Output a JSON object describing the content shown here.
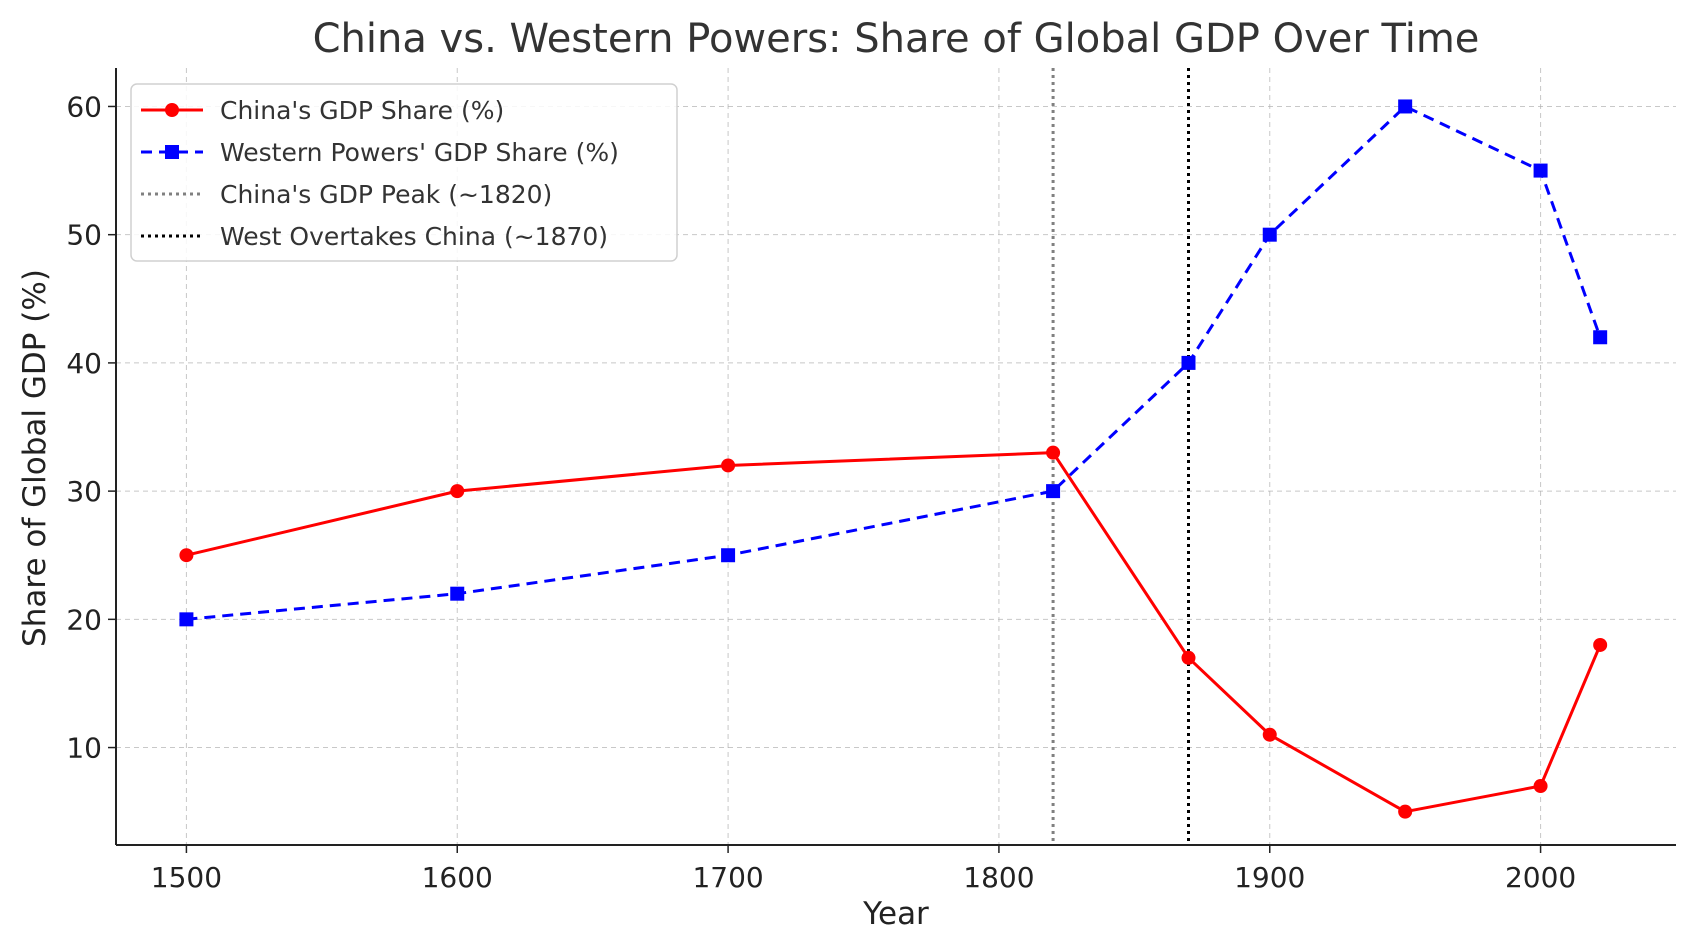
{
  "chart_data": {
    "type": "line",
    "title": "China vs. Western Powers: Share of Global GDP Over Time",
    "xlabel": "Year",
    "ylabel": "Share of Global GDP (%)",
    "xlim": [
      1474,
      2050
    ],
    "ylim": [
      2.4,
      63
    ],
    "xticks": [
      1500,
      1600,
      1700,
      1800,
      1900,
      2000
    ],
    "yticks": [
      10,
      20,
      30,
      40,
      50,
      60
    ],
    "grid": true,
    "legend_position": "top-left",
    "series": [
      {
        "name": "China's GDP Share (%)",
        "color": "#ff0000",
        "line_style": "solid",
        "marker": "circle",
        "x": [
          1500,
          1600,
          1700,
          1820,
          1870,
          1900,
          1950,
          2000,
          2022
        ],
        "y": [
          25,
          30,
          32,
          33,
          17,
          11,
          5,
          7,
          18
        ]
      },
      {
        "name": "Western Powers' GDP Share (%)",
        "color": "#0000ff",
        "line_style": "dashed",
        "marker": "square",
        "x": [
          1500,
          1600,
          1700,
          1820,
          1870,
          1900,
          1950,
          2000,
          2022
        ],
        "y": [
          20,
          22,
          25,
          30,
          40,
          50,
          60,
          55,
          42
        ]
      }
    ],
    "reference_lines": [
      {
        "name": "China's GDP Peak (~1820)",
        "x": 1820,
        "color": "#808080",
        "line_style": "dotted"
      },
      {
        "name": "West Overtakes China (~1870)",
        "x": 1870,
        "color": "#000000",
        "line_style": "dotted"
      }
    ]
  }
}
